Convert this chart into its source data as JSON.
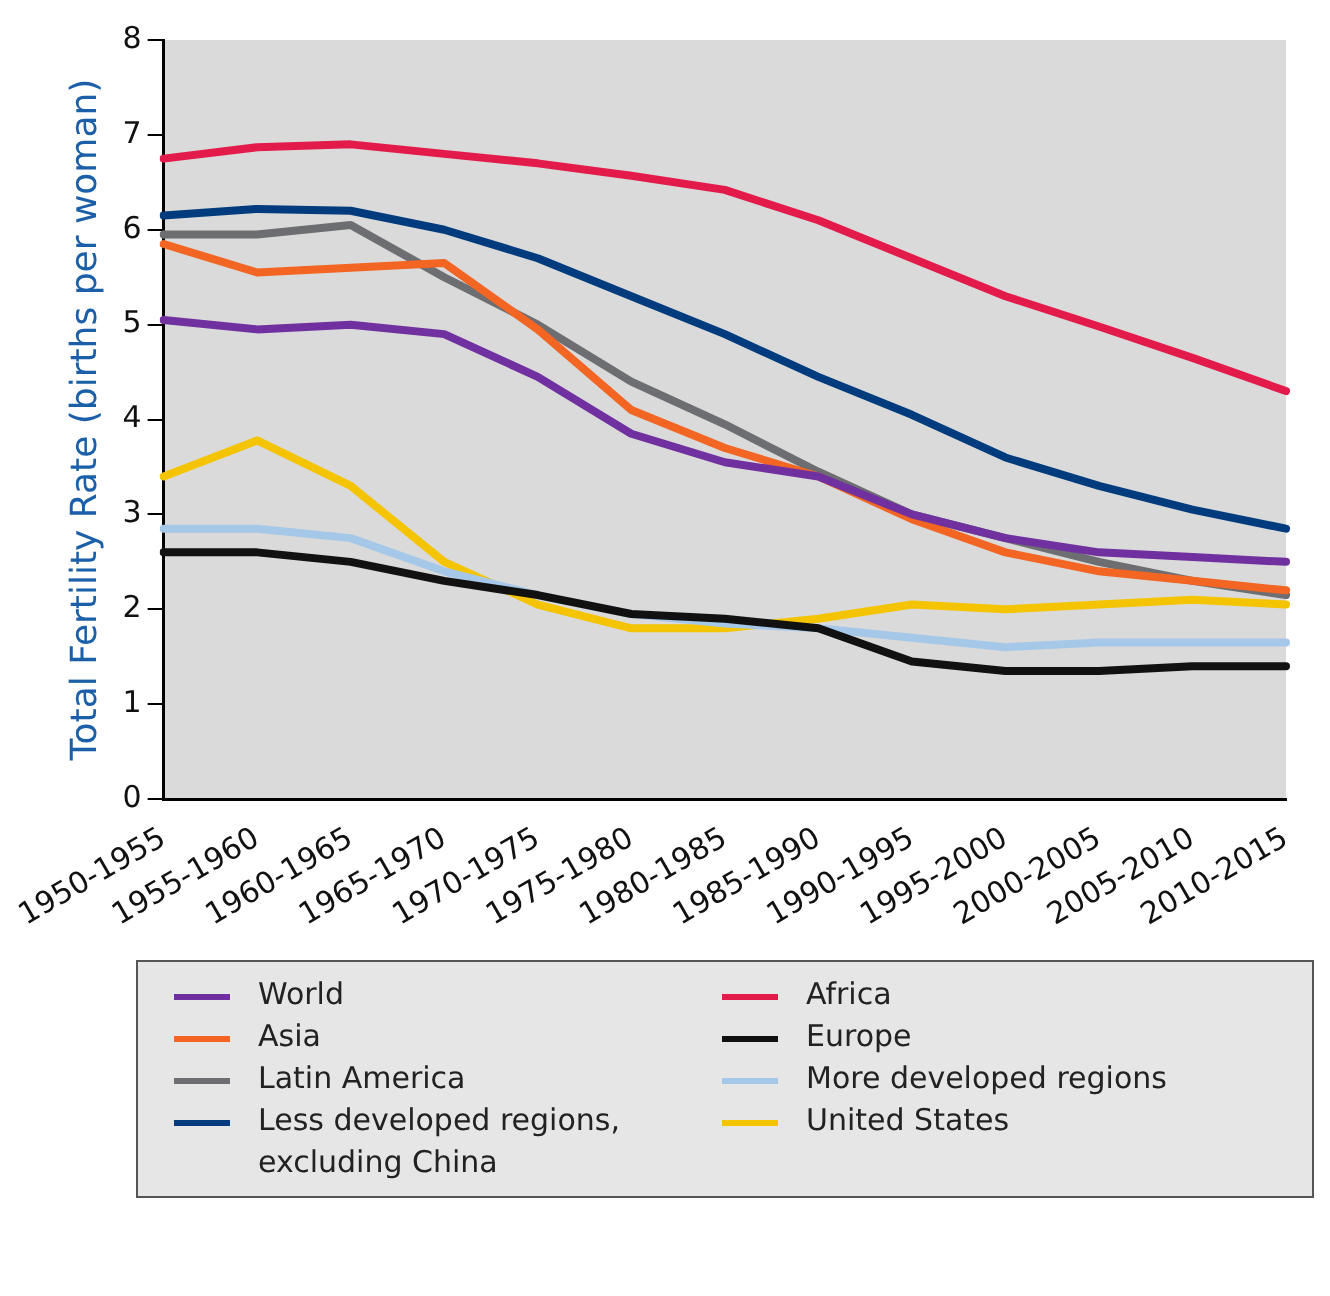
{
  "chart_data": {
    "type": "line",
    "ylabel": "Total Fertility Rate (births per woman)",
    "categories": [
      "1950-1955",
      "1955-1960",
      "1960-1965",
      "1965-1970",
      "1970-1975",
      "1975-1980",
      "1980-1985",
      "1985-1990",
      "1990-1995",
      "1995-2000",
      "2000-2005",
      "2005-2010",
      "2010-2015"
    ],
    "series": [
      {
        "name": "World",
        "color": "#7030a0",
        "values": [
          5.05,
          4.95,
          5.0,
          4.9,
          4.45,
          3.85,
          3.55,
          3.4,
          3.0,
          2.75,
          2.6,
          2.55,
          2.5
        ]
      },
      {
        "name": "Asia",
        "color": "#f26522",
        "values": [
          5.85,
          5.55,
          5.6,
          5.65,
          4.95,
          4.1,
          3.7,
          3.4,
          2.95,
          2.6,
          2.4,
          2.3,
          2.2
        ]
      },
      {
        "name": "Latin America",
        "color": "#6d6e71",
        "values": [
          5.95,
          5.95,
          6.05,
          5.5,
          5.0,
          4.4,
          3.95,
          3.45,
          3.0,
          2.75,
          2.5,
          2.3,
          2.15
        ]
      },
      {
        "name": "Less developed regions, excluding China",
        "color": "#003c7d",
        "values": [
          6.15,
          6.22,
          6.2,
          6.0,
          5.7,
          5.3,
          4.9,
          4.45,
          4.05,
          3.6,
          3.3,
          3.05,
          2.85
        ]
      },
      {
        "name": "Africa",
        "color": "#e31b4b",
        "values": [
          6.75,
          6.87,
          6.9,
          6.8,
          6.7,
          6.57,
          6.42,
          6.1,
          5.7,
          5.3,
          4.98,
          4.65,
          4.3
        ]
      },
      {
        "name": "Europe",
        "color": "#111111",
        "values": [
          2.6,
          2.6,
          2.5,
          2.3,
          2.15,
          1.95,
          1.9,
          1.8,
          1.45,
          1.35,
          1.35,
          1.4,
          1.4
        ]
      },
      {
        "name": "More developed regions",
        "color": "#a6c8e8",
        "values": [
          2.85,
          2.85,
          2.75,
          2.4,
          2.15,
          1.95,
          1.85,
          1.8,
          1.7,
          1.6,
          1.65,
          1.65,
          1.65
        ]
      },
      {
        "name": "United States",
        "color": "#f5c400",
        "values": [
          3.4,
          3.78,
          3.3,
          2.5,
          2.05,
          1.8,
          1.8,
          1.9,
          2.05,
          2.0,
          2.05,
          2.1,
          2.05
        ]
      }
    ],
    "ylim": [
      0,
      8
    ],
    "yticks": [
      0,
      1,
      2,
      3,
      4,
      5,
      6,
      7,
      8
    ],
    "grid": false,
    "legend": "bottom",
    "line_style": "solid",
    "marker": "none"
  }
}
